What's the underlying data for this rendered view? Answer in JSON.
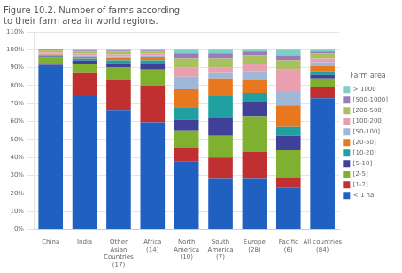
{
  "chart_data": {
    "type": "bar",
    "stacked": true,
    "title": [
      "Figure 10.2. Number of farms according",
      "to their farm area in world regions."
    ],
    "legend_title": "Farm area",
    "legend": "right",
    "grid": true,
    "categories": [
      "China",
      "India",
      "Other\nAsian\nCountries\n(17)",
      "Africa\n(14)",
      "North\nAmerica\n(10)",
      "South\nAmerica\n(7)",
      "Europe\n(28)",
      "Pacific\n(6)",
      "All countries\n(84)"
    ],
    "series": [
      {
        "name": "< 1 ha",
        "color": "#2060c0",
        "values": [
          91.5,
          75.0,
          66.0,
          59.5,
          38.0,
          28.0,
          28.0,
          23.0,
          73.0
        ]
      },
      {
        "name": "[1-2]",
        "color": "#c03030",
        "values": [
          1.0,
          12.0,
          17.0,
          20.5,
          7.0,
          12.0,
          15.0,
          6.0,
          6.0
        ]
      },
      {
        "name": "[2-5]",
        "color": "#80b030",
        "values": [
          3.0,
          5.0,
          7.0,
          9.0,
          10.0,
          12.0,
          20.0,
          15.0,
          5.0
        ]
      },
      {
        "name": "[5-10]",
        "color": "#404098",
        "values": [
          1.0,
          2.0,
          2.5,
          3.0,
          6.0,
          10.0,
          8.0,
          8.0,
          2.0
        ]
      },
      {
        "name": "[10-20]",
        "color": "#20a0a0",
        "values": [
          0.5,
          1.0,
          1.5,
          2.0,
          7.0,
          12.0,
          5.0,
          5.0,
          2.0
        ]
      },
      {
        "name": "[20-50]",
        "color": "#e87820",
        "values": [
          0.5,
          1.0,
          1.5,
          2.0,
          10.0,
          10.0,
          7.0,
          12.0,
          3.0
        ]
      },
      {
        "name": "[50-100]",
        "color": "#a0b8d8",
        "values": [
          0.5,
          1.0,
          1.0,
          1.0,
          7.0,
          3.0,
          5.0,
          8.0,
          2.0
        ]
      },
      {
        "name": "[100-200]",
        "color": "#e8a0b0",
        "values": [
          0.5,
          1.0,
          1.0,
          1.0,
          5.0,
          3.0,
          4.0,
          12.0,
          2.0
        ]
      },
      {
        "name": "[200-500]",
        "color": "#a8c060",
        "values": [
          1.0,
          1.0,
          1.5,
          1.0,
          5.0,
          5.0,
          5.0,
          5.0,
          3.0
        ]
      },
      {
        "name": "[500-1000]",
        "color": "#9b7bb5",
        "values": [
          0.5,
          0.5,
          0.5,
          0.5,
          3.0,
          3.0,
          2.0,
          3.0,
          1.0
        ]
      },
      {
        "name": "> 1000",
        "color": "#7ececa",
        "values": [
          0.5,
          0.5,
          0.5,
          0.5,
          2.0,
          2.0,
          1.0,
          3.0,
          1.0
        ]
      }
    ],
    "ylim": [
      0,
      110
    ],
    "yticks": [
      {
        "value": 0,
        "label": "0%"
      },
      {
        "value": 10,
        "label": "10%"
      },
      {
        "value": 20,
        "label": "20%"
      },
      {
        "value": 30,
        "label": "30%"
      },
      {
        "value": 40,
        "label": "40%"
      },
      {
        "value": 50,
        "label": "50%"
      },
      {
        "value": 60,
        "label": "60%"
      },
      {
        "value": 70,
        "label": "70%"
      },
      {
        "value": 80,
        "label": "80%"
      },
      {
        "value": 90,
        "label": "90%"
      },
      {
        "value": 100,
        "label": "100%"
      },
      {
        "value": 110,
        "label": "110%"
      }
    ]
  }
}
